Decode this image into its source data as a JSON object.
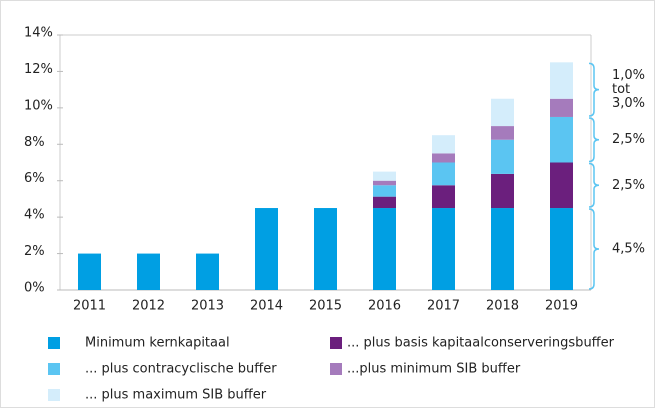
{
  "chart_data": {
    "type": "stacked-bar",
    "categories": [
      "2011",
      "2012",
      "2013",
      "2014",
      "2015",
      "2016",
      "2017",
      "2018",
      "2019"
    ],
    "series": [
      {
        "name": "Minimum kernkapitaal",
        "color": "#009fe3",
        "values": [
          2,
          2,
          2,
          4.5,
          4.5,
          4.5,
          4.5,
          4.5,
          4.5
        ]
      },
      {
        "name": "... plus basis kapitaalconserveringsbuffer",
        "color": "#6b1f7d",
        "values": [
          0,
          0,
          0,
          0,
          0,
          0.625,
          1.25,
          1.875,
          2.5
        ]
      },
      {
        "name": "... plus contracyclische buffer",
        "color": "#5bc5f2",
        "values": [
          0,
          0,
          0,
          0,
          0,
          0.625,
          1.25,
          1.875,
          2.5
        ]
      },
      {
        "name": "...plus minimum SIB buffer",
        "color": "#a57bbc",
        "values": [
          0,
          0,
          0,
          0,
          0,
          0.25,
          0.5,
          0.75,
          1.0
        ]
      },
      {
        "name": "... plus maximum SIB buffer",
        "color": "#d4edfb",
        "values": [
          0,
          0,
          0,
          0,
          0,
          0.5,
          1.0,
          1.5,
          2.0
        ]
      }
    ],
    "ylim": [
      0,
      14
    ],
    "yticks": [
      {
        "value": 0,
        "label": "0%"
      },
      {
        "value": 2,
        "label": "2%"
      },
      {
        "value": 4,
        "label": "4%"
      },
      {
        "value": 6,
        "label": "6%"
      },
      {
        "value": 8,
        "label": "8%"
      },
      {
        "value": 10,
        "label": "10%"
      },
      {
        "value": 12,
        "label": "12%"
      },
      {
        "value": 14,
        "label": "14%"
      }
    ],
    "annotations": [
      {
        "from": 0,
        "to": 4.5,
        "lines": [
          "4,5%"
        ]
      },
      {
        "from": 4.5,
        "to": 7,
        "lines": [
          "2,5%"
        ]
      },
      {
        "from": 7,
        "to": 9.5,
        "lines": [
          "2,5%"
        ]
      },
      {
        "from": 9.5,
        "to": 12.5,
        "lines": [
          "1,0%",
          "tot",
          "3,0%"
        ]
      }
    ],
    "bracket_color": "#5bc5f2"
  }
}
